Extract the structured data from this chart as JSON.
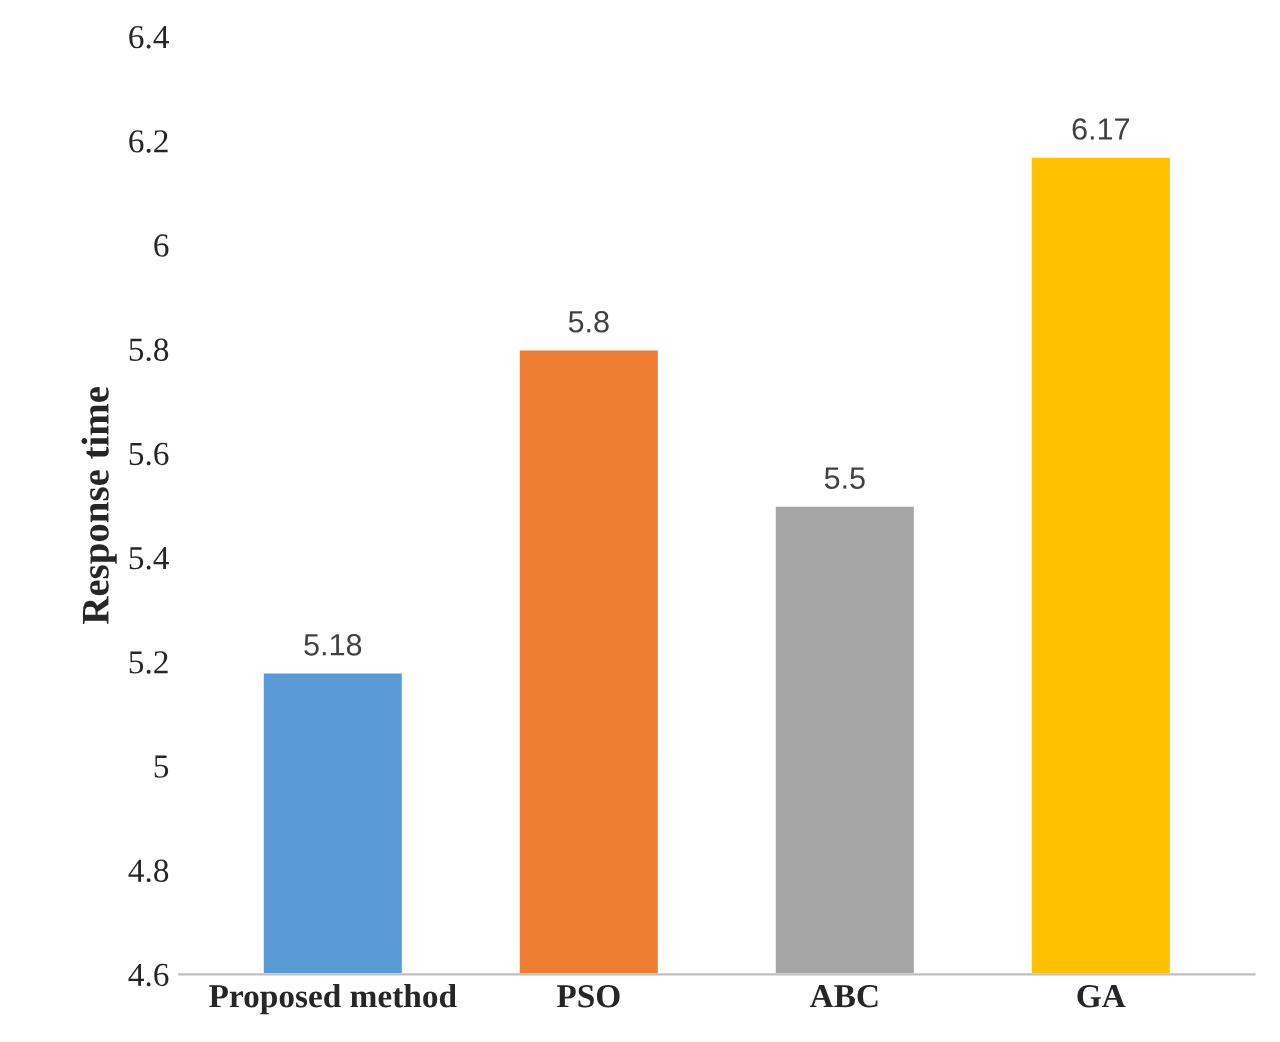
{
  "chart_data": {
    "type": "bar",
    "ylabel": "Response time",
    "categories": [
      "Proposed method",
      "PSO",
      "ABC",
      "GA"
    ],
    "values": [
      5.18,
      5.8,
      5.5,
      6.17
    ],
    "colors": [
      "#5b9bd5",
      "#ed7d31",
      "#a5a5a5",
      "#ffc000"
    ],
    "ylim": [
      4.6,
      6.4
    ],
    "yticks": [
      4.6,
      4.8,
      5,
      5.2,
      5.4,
      5.6,
      5.8,
      6,
      6.2,
      6.4
    ],
    "data_labels": true,
    "grid": false,
    "legend": false
  }
}
